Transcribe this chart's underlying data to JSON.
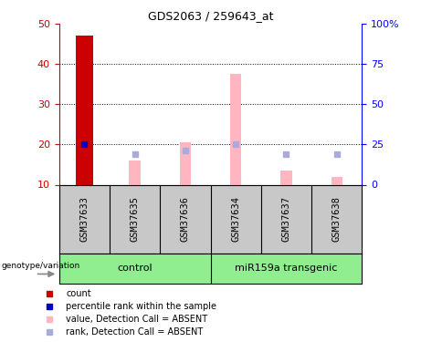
{
  "title": "GDS2063 / 259643_at",
  "samples": [
    "GSM37633",
    "GSM37635",
    "GSM37636",
    "GSM37634",
    "GSM37637",
    "GSM37638"
  ],
  "ylim_left": [
    10,
    50
  ],
  "ylim_right": [
    0,
    100
  ],
  "yticks_left": [
    10,
    20,
    30,
    40,
    50
  ],
  "yticks_right": [
    0,
    25,
    50,
    75,
    100
  ],
  "yticklabels_right": [
    "0",
    "25",
    "50",
    "75",
    "100%"
  ],
  "red_bar": {
    "sample_idx": 0,
    "value": 47
  },
  "blue_square": {
    "sample_idx": 0,
    "value": 25
  },
  "pink_bars": [
    {
      "sample_idx": 1,
      "value": 16
    },
    {
      "sample_idx": 2,
      "value": 20.5
    },
    {
      "sample_idx": 3,
      "value": 37.5
    },
    {
      "sample_idx": 4,
      "value": 13.5
    },
    {
      "sample_idx": 5,
      "value": 12
    }
  ],
  "light_blue_squares": [
    {
      "sample_idx": 1,
      "value": 19
    },
    {
      "sample_idx": 2,
      "value": 21
    },
    {
      "sample_idx": 3,
      "value": 25
    },
    {
      "sample_idx": 4,
      "value": 19
    },
    {
      "sample_idx": 5,
      "value": 19
    }
  ],
  "red_color": "#CC0000",
  "pink_color": "#FFB6C1",
  "blue_color": "#0000CC",
  "light_blue_color": "#AAAADD",
  "label_area_color": "#C8C8C8",
  "group_label_color": "#90EE90",
  "legend_items": [
    {
      "label": "count",
      "color": "#CC0000"
    },
    {
      "label": "percentile rank within the sample",
      "color": "#0000CC"
    },
    {
      "label": "value, Detection Call = ABSENT",
      "color": "#FFB6C1"
    },
    {
      "label": "rank, Detection Call = ABSENT",
      "color": "#AAAADD"
    }
  ],
  "genotype_label": "genotype/variation"
}
